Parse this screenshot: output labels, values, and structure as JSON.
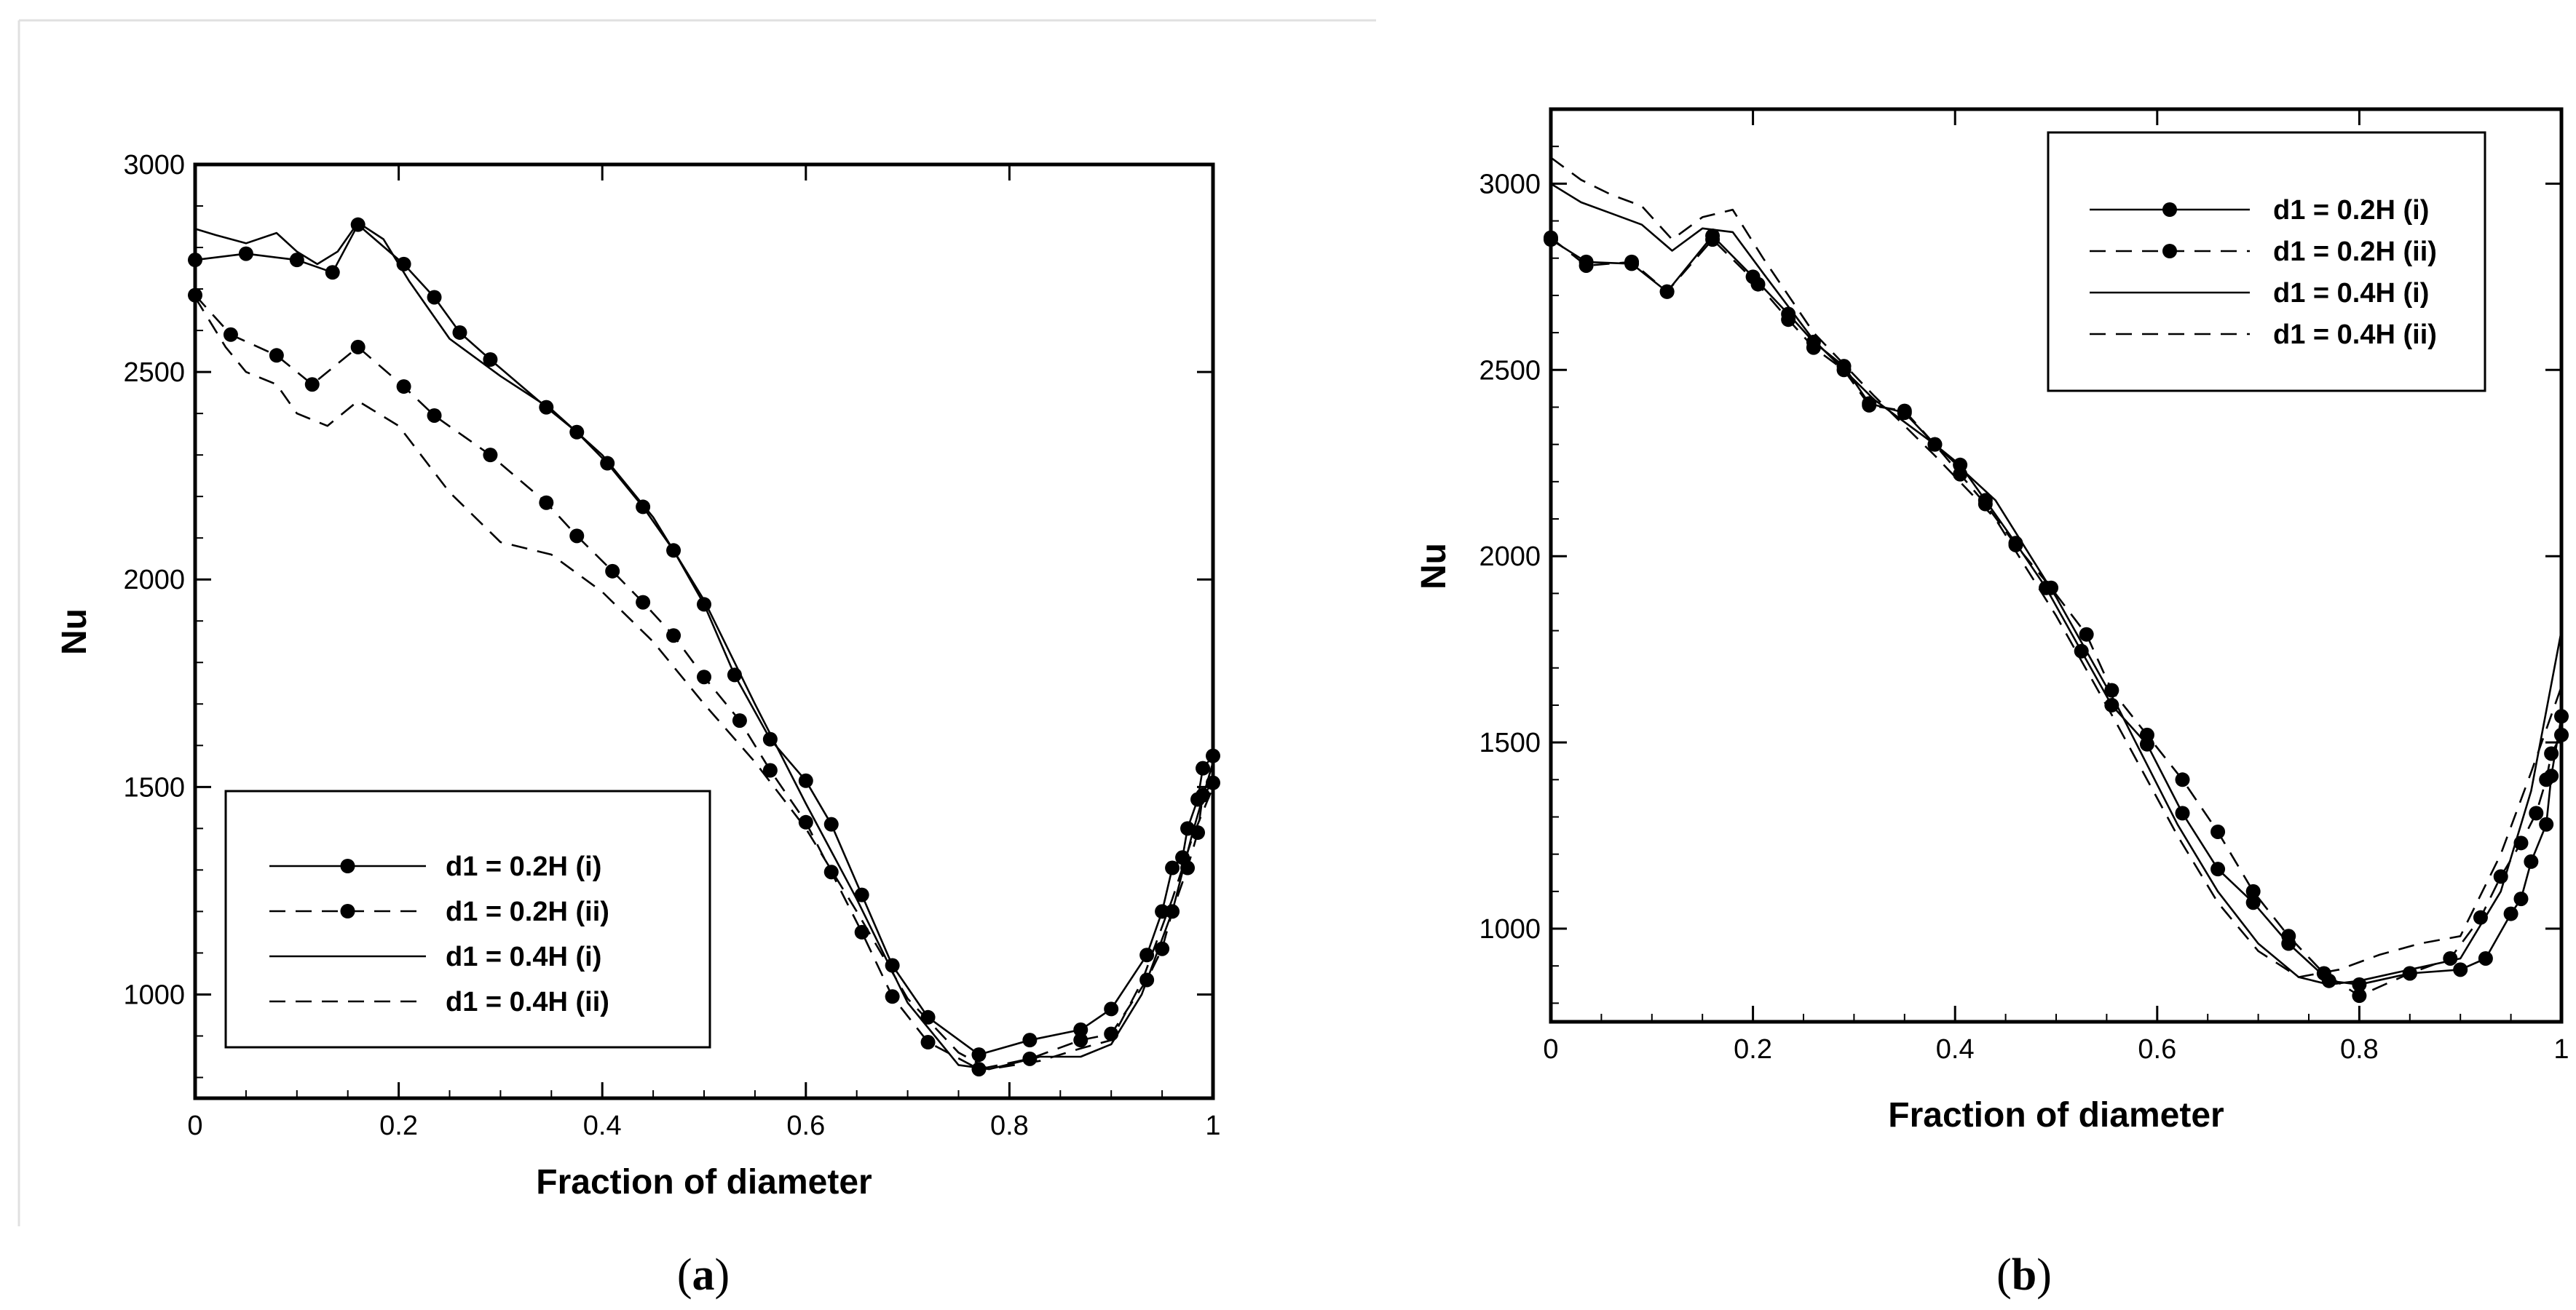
{
  "chart_data": [
    {
      "type": "line",
      "caption_open": "(",
      "caption_letter": "a",
      "caption_close": ")",
      "title": "",
      "xlabel": "Fraction of diameter",
      "ylabel": "Nu",
      "xlim": [
        0,
        1
      ],
      "ylim": [
        750,
        3000
      ],
      "x_ticks": [
        0,
        0.2,
        0.4,
        0.6,
        0.8,
        1
      ],
      "x_tick_labels": [
        "0",
        "0.2",
        "0.4",
        "0.6",
        "0.8",
        "1"
      ],
      "y_ticks": [
        1000,
        1500,
        2000,
        2500,
        3000
      ],
      "y_tick_labels": [
        "1000",
        "1500",
        "2000",
        "2500",
        "3000"
      ],
      "legend_position": "bottom-left",
      "series": [
        {
          "name": "d1 = 0.2H (i)",
          "style": "solid-marker",
          "x": [
            0,
            0.05,
            0.1,
            0.135,
            0.16,
            0.205,
            0.235,
            0.26,
            0.29,
            0.345,
            0.375,
            0.405,
            0.44,
            0.47,
            0.5,
            0.53,
            0.565,
            0.6,
            0.625,
            0.655,
            0.685,
            0.72,
            0.77,
            0.82,
            0.87,
            0.9,
            0.935,
            0.95,
            0.96,
            0.97,
            0.975,
            0.985,
            0.99,
            1
          ],
          "y": [
            2770,
            2785,
            2770,
            2740,
            2855,
            2760,
            2680,
            2595,
            2530,
            2415,
            2355,
            2280,
            2175,
            2070,
            1940,
            1770,
            1615,
            1515,
            1410,
            1240,
            1070,
            945,
            855,
            890,
            915,
            965,
            1095,
            1200,
            1305,
            1330,
            1400,
            1470,
            1545,
            1575
          ]
        },
        {
          "name": "d1 = 0.2H (ii)",
          "style": "dashed-marker",
          "x": [
            0,
            0.035,
            0.08,
            0.115,
            0.16,
            0.205,
            0.235,
            0.29,
            0.345,
            0.375,
            0.41,
            0.44,
            0.47,
            0.5,
            0.535,
            0.565,
            0.6,
            0.625,
            0.655,
            0.685,
            0.72,
            0.77,
            0.82,
            0.87,
            0.9,
            0.935,
            0.95,
            0.96,
            0.975,
            0.985,
            0.99,
            1
          ],
          "y": [
            2685,
            2590,
            2540,
            2470,
            2560,
            2465,
            2395,
            2300,
            2185,
            2105,
            2020,
            1945,
            1865,
            1765,
            1660,
            1540,
            1415,
            1295,
            1150,
            995,
            885,
            820,
            845,
            890,
            905,
            1035,
            1110,
            1200,
            1305,
            1390,
            1480,
            1510
          ]
        },
        {
          "name": "d1 = 0.4H (i)",
          "style": "solid",
          "x": [
            0,
            0.02,
            0.05,
            0.08,
            0.1,
            0.12,
            0.14,
            0.16,
            0.185,
            0.21,
            0.25,
            0.3,
            0.35,
            0.4,
            0.45,
            0.5,
            0.55,
            0.6,
            0.65,
            0.7,
            0.75,
            0.78,
            0.83,
            0.87,
            0.9,
            0.93,
            0.96,
            0.98,
            1
          ],
          "y": [
            2845,
            2830,
            2810,
            2835,
            2790,
            2760,
            2790,
            2860,
            2820,
            2720,
            2580,
            2490,
            2410,
            2300,
            2150,
            1950,
            1700,
            1460,
            1230,
            980,
            830,
            820,
            850,
            850,
            880,
            1000,
            1200,
            1390,
            1560
          ]
        },
        {
          "name": "d1 = 0.4H (ii)",
          "style": "dashed",
          "x": [
            0,
            0.03,
            0.05,
            0.08,
            0.1,
            0.13,
            0.16,
            0.2,
            0.25,
            0.3,
            0.35,
            0.4,
            0.45,
            0.5,
            0.55,
            0.6,
            0.65,
            0.7,
            0.75,
            0.78,
            0.83,
            0.87,
            0.9,
            0.93,
            0.96,
            0.98,
            1
          ],
          "y": [
            2680,
            2560,
            2500,
            2470,
            2400,
            2370,
            2430,
            2370,
            2210,
            2090,
            2060,
            1970,
            1850,
            1700,
            1560,
            1400,
            1200,
            990,
            860,
            820,
            840,
            870,
            890,
            1030,
            1230,
            1380,
            1500
          ]
        }
      ]
    },
    {
      "type": "line",
      "caption_open": "(",
      "caption_letter": "b",
      "caption_close": ")",
      "title": "",
      "xlabel": "Fraction of diameter",
      "ylabel": "Nu",
      "xlim": [
        0,
        1
      ],
      "ylim": [
        750,
        3200
      ],
      "x_ticks": [
        0,
        0.2,
        0.4,
        0.6,
        0.8,
        1
      ],
      "x_tick_labels": [
        "0",
        "0.2",
        "0.4",
        "0.6",
        "0.8",
        "1"
      ],
      "y_ticks": [
        1000,
        1500,
        2000,
        2500,
        3000
      ],
      "y_tick_labels": [
        "1000",
        "1500",
        "2000",
        "2500",
        "3000"
      ],
      "legend_position": "top-right",
      "series": [
        {
          "name": "d1 = 0.2H (i)",
          "style": "solid-marker",
          "x": [
            0,
            0.035,
            0.08,
            0.115,
            0.16,
            0.2,
            0.235,
            0.26,
            0.29,
            0.315,
            0.35,
            0.38,
            0.405,
            0.43,
            0.46,
            0.49,
            0.525,
            0.555,
            0.59,
            0.625,
            0.66,
            0.695,
            0.73,
            0.77,
            0.8,
            0.85,
            0.9,
            0.925,
            0.95,
            0.96,
            0.97,
            0.985,
            0.99,
            1
          ],
          "y": [
            2850,
            2790,
            2785,
            2710,
            2860,
            2750,
            2650,
            2575,
            2510,
            2410,
            2385,
            2300,
            2245,
            2150,
            2035,
            1915,
            1745,
            1600,
            1495,
            1310,
            1160,
            1070,
            960,
            860,
            850,
            880,
            890,
            920,
            1040,
            1080,
            1180,
            1280,
            1410,
            1570
          ]
        },
        {
          "name": "d1 = 0.2H (ii)",
          "style": "dashed-marker",
          "x": [
            0,
            0.035,
            0.08,
            0.115,
            0.16,
            0.205,
            0.235,
            0.26,
            0.29,
            0.315,
            0.35,
            0.38,
            0.405,
            0.43,
            0.46,
            0.495,
            0.53,
            0.555,
            0.59,
            0.625,
            0.66,
            0.695,
            0.73,
            0.765,
            0.8,
            0.85,
            0.89,
            0.92,
            0.94,
            0.96,
            0.975,
            0.985,
            0.99,
            1
          ],
          "y": [
            2855,
            2780,
            2790,
            2710,
            2850,
            2730,
            2635,
            2560,
            2500,
            2405,
            2390,
            2300,
            2220,
            2140,
            2030,
            1915,
            1790,
            1640,
            1520,
            1400,
            1260,
            1100,
            980,
            880,
            820,
            880,
            920,
            1030,
            1140,
            1230,
            1310,
            1400,
            1470,
            1520
          ]
        },
        {
          "name": "d1 = 0.4H (i)",
          "style": "solid",
          "x": [
            0,
            0.03,
            0.06,
            0.09,
            0.12,
            0.15,
            0.18,
            0.21,
            0.26,
            0.32,
            0.38,
            0.44,
            0.5,
            0.56,
            0.62,
            0.66,
            0.7,
            0.74,
            0.77,
            0.8,
            0.85,
            0.9,
            0.94,
            0.97,
            1
          ],
          "y": [
            3000,
            2950,
            2920,
            2890,
            2820,
            2880,
            2870,
            2760,
            2580,
            2420,
            2300,
            2150,
            1890,
            1600,
            1280,
            1100,
            960,
            870,
            850,
            860,
            890,
            920,
            1100,
            1370,
            1800
          ]
        },
        {
          "name": "d1 = 0.4H (ii)",
          "style": "dashed",
          "x": [
            0,
            0.03,
            0.06,
            0.09,
            0.12,
            0.15,
            0.18,
            0.21,
            0.26,
            0.32,
            0.38,
            0.44,
            0.5,
            0.56,
            0.62,
            0.66,
            0.7,
            0.74,
            0.78,
            0.82,
            0.86,
            0.9,
            0.94,
            0.97,
            1
          ],
          "y": [
            3070,
            3010,
            2970,
            2940,
            2850,
            2910,
            2930,
            2800,
            2600,
            2430,
            2270,
            2100,
            1840,
            1550,
            1250,
            1070,
            940,
            870,
            890,
            930,
            960,
            980,
            1200,
            1420,
            1650
          ]
        }
      ]
    }
  ]
}
